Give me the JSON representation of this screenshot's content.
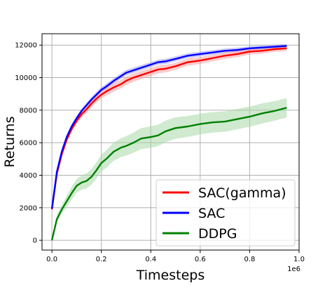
{
  "chart_data": {
    "type": "line",
    "xlabel": "Timesteps",
    "ylabel": "Returns",
    "x_offset_label": "1e6",
    "xlim": [
      -0.04,
      1.0
    ],
    "ylim": [
      -600,
      12700
    ],
    "xticks": [
      0.0,
      0.2,
      0.4,
      0.6,
      0.8,
      1.0
    ],
    "xtick_labels": [
      "0.0",
      "0.2",
      "0.4",
      "0.6",
      "0.8",
      "1.0"
    ],
    "yticks": [
      0,
      2000,
      4000,
      6000,
      8000,
      10000,
      12000
    ],
    "ytick_labels": [
      "0",
      "2000",
      "4000",
      "6000",
      "8000",
      "10000",
      "12000"
    ],
    "grid": true,
    "legend_position": "lower-right",
    "series": [
      {
        "name": "SAC(gamma)",
        "color": "#ff0000",
        "band_color": "#f4a0a0",
        "x": [
          0.0,
          0.02,
          0.04,
          0.06,
          0.08,
          0.1,
          0.12,
          0.14,
          0.16,
          0.18,
          0.2,
          0.22,
          0.25,
          0.28,
          0.3,
          0.33,
          0.36,
          0.4,
          0.43,
          0.46,
          0.5,
          0.55,
          0.6,
          0.65,
          0.7,
          0.75,
          0.8,
          0.85,
          0.9,
          0.95
        ],
        "y": [
          1900,
          4100,
          5300,
          6200,
          6850,
          7350,
          7750,
          8050,
          8400,
          8700,
          8950,
          9150,
          9400,
          9600,
          9800,
          10000,
          10150,
          10350,
          10500,
          10550,
          10700,
          10950,
          11050,
          11200,
          11350,
          11450,
          11600,
          11650,
          11750,
          11800
        ],
        "band": [
          120,
          150,
          170,
          180,
          190,
          200,
          210,
          220,
          230,
          230,
          240,
          250,
          260,
          260,
          260,
          250,
          250,
          240,
          240,
          230,
          220,
          220,
          210,
          200,
          200,
          190,
          180,
          170,
          170,
          160
        ]
      },
      {
        "name": "SAC",
        "color": "#0000ff",
        "band_color": "#a0a0f4",
        "x": [
          0.0,
          0.02,
          0.04,
          0.06,
          0.08,
          0.1,
          0.12,
          0.14,
          0.16,
          0.18,
          0.2,
          0.22,
          0.25,
          0.28,
          0.3,
          0.33,
          0.36,
          0.4,
          0.43,
          0.46,
          0.5,
          0.55,
          0.6,
          0.65,
          0.7,
          0.75,
          0.8,
          0.85,
          0.9,
          0.95
        ],
        "y": [
          1950,
          4200,
          5450,
          6350,
          7000,
          7500,
          7950,
          8300,
          8650,
          8950,
          9250,
          9450,
          9800,
          10100,
          10300,
          10450,
          10600,
          10800,
          10950,
          11000,
          11150,
          11350,
          11450,
          11550,
          11650,
          11700,
          11800,
          11850,
          11900,
          11950
        ],
        "band": [
          100,
          120,
          130,
          140,
          150,
          150,
          160,
          160,
          170,
          170,
          170,
          170,
          170,
          170,
          170,
          170,
          160,
          160,
          160,
          160,
          150,
          150,
          150,
          140,
          140,
          140,
          130,
          130,
          130,
          120
        ]
      },
      {
        "name": "DDPG",
        "color": "#008000",
        "band_color": "#a8d8a8",
        "x": [
          0.0,
          0.02,
          0.04,
          0.06,
          0.08,
          0.1,
          0.12,
          0.14,
          0.16,
          0.18,
          0.2,
          0.22,
          0.25,
          0.28,
          0.3,
          0.33,
          0.36,
          0.4,
          0.43,
          0.46,
          0.5,
          0.55,
          0.6,
          0.65,
          0.7,
          0.75,
          0.8,
          0.85,
          0.9,
          0.95
        ],
        "y": [
          0,
          1300,
          1900,
          2400,
          2900,
          3350,
          3550,
          3650,
          3900,
          4300,
          4750,
          5000,
          5450,
          5700,
          5800,
          6000,
          6250,
          6350,
          6450,
          6700,
          6900,
          7000,
          7150,
          7250,
          7300,
          7450,
          7600,
          7800,
          7950,
          8150
        ],
        "band": [
          100,
          200,
          300,
          350,
          400,
          420,
          440,
          460,
          480,
          500,
          520,
          540,
          560,
          580,
          600,
          620,
          640,
          660,
          660,
          660,
          660,
          640,
          640,
          630,
          630,
          630,
          620,
          620,
          600,
          600
        ]
      }
    ]
  }
}
